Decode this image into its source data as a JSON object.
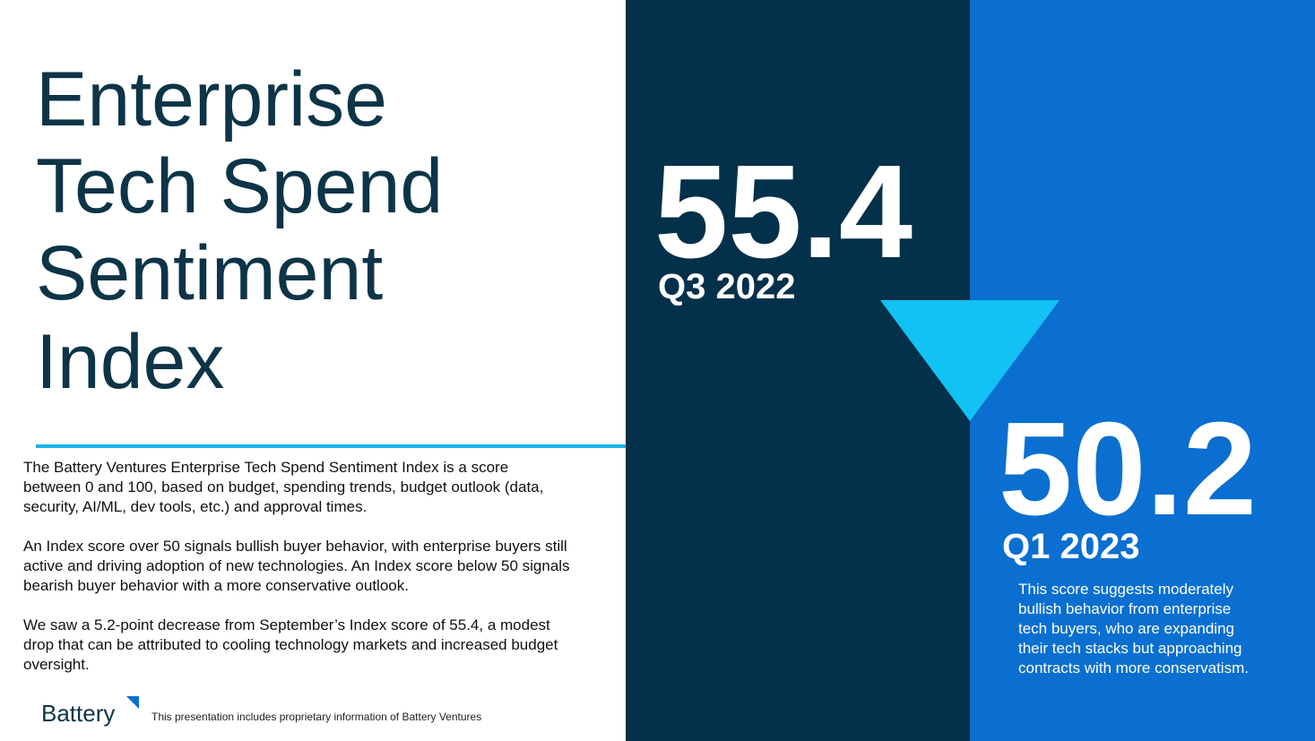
{
  "title": {
    "lines": [
      "Enterprise",
      "Tech Spend",
      "Sentiment",
      "Index"
    ]
  },
  "description": {
    "paragraphs": [
      {
        "lines": [
          "The Battery Ventures Enterprise Tech Spend Sentiment Index is a score",
          "between 0 and 100, based on budget, spending trends, budget outlook (data,",
          "security, AI/ML, dev tools, etc.) and approval times."
        ]
      },
      {
        "lines": [
          "An Index score over 50 signals bullish buyer behavior, with enterprise buyers still",
          "active and driving adoption of new technologies. An Index score below 50 signals",
          "bearish buyer behavior with a more conservative outlook."
        ]
      },
      {
        "lines": [
          "We saw a 5.2-point decrease from September’s Index score of 55.4, a modest",
          "drop that can be attributed to cooling technology markets and increased budget",
          "oversight."
        ]
      }
    ]
  },
  "scores": [
    {
      "value": "55.4",
      "period": "Q3 2022"
    },
    {
      "value": "50.2",
      "period": "Q1 2023"
    }
  ],
  "note": {
    "lines": [
      "This score suggests moderately",
      "bullish behavior from enterprise",
      "tech buyers, who are expanding",
      "their tech stacks but approaching",
      "contracts with more conservatism."
    ]
  },
  "footer": {
    "logo": "Battery",
    "disclaimer": "This presentation includes proprietary information of Battery Ventures"
  }
}
